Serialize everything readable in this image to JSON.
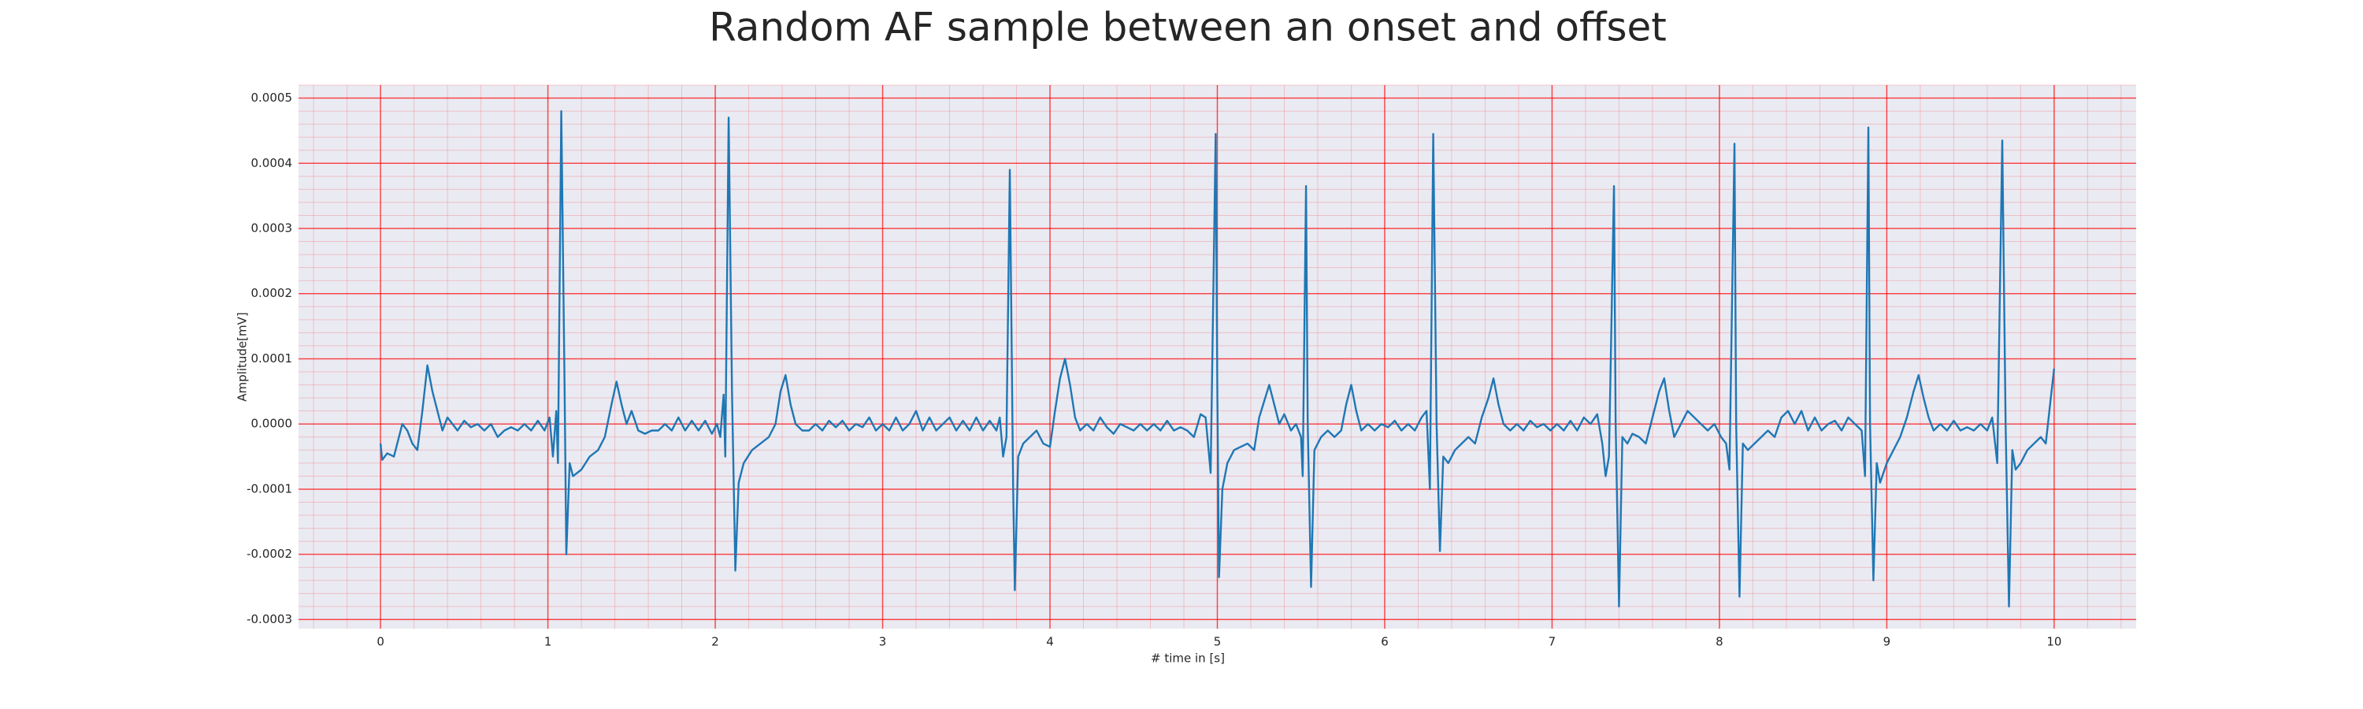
{
  "chart_data": {
    "type": "line",
    "title": "Random AF sample between an onset and offset",
    "xlabel": "# time in [s]",
    "ylabel": "Amplitude[mV]",
    "color": "#1f77b4",
    "grid": true,
    "grid_color": "#ff0000",
    "minor_grid": true,
    "xlim": [
      -0.49,
      10.49
    ],
    "ylim": [
      -0.000314,
      0.00052
    ],
    "xticks": [
      0,
      1,
      2,
      3,
      4,
      5,
      6,
      7,
      8,
      9,
      10
    ],
    "yticks": [
      -0.0003,
      -0.0002,
      -0.0001,
      {
        "value": 0,
        "label": "0.0000"
      },
      0.0001,
      0.0002,
      0.0003,
      0.0004,
      0.0005
    ],
    "x": [
      0.0,
      0.01,
      0.04,
      0.08,
      0.11,
      0.13,
      0.16,
      0.19,
      0.22,
      0.25,
      0.28,
      0.31,
      0.34,
      0.37,
      0.4,
      0.43,
      0.46,
      0.5,
      0.54,
      0.58,
      0.62,
      0.66,
      0.7,
      0.74,
      0.78,
      0.82,
      0.86,
      0.9,
      0.94,
      0.98,
      1.01,
      1.03,
      1.05,
      1.06,
      1.08,
      1.1,
      1.11,
      1.13,
      1.15,
      1.2,
      1.25,
      1.3,
      1.34,
      1.38,
      1.41,
      1.44,
      1.47,
      1.5,
      1.54,
      1.58,
      1.62,
      1.66,
      1.7,
      1.74,
      1.78,
      1.82,
      1.86,
      1.9,
      1.94,
      1.98,
      2.01,
      2.03,
      2.05,
      2.06,
      2.08,
      2.1,
      2.12,
      2.14,
      2.17,
      2.22,
      2.27,
      2.32,
      2.36,
      2.39,
      2.42,
      2.45,
      2.48,
      2.52,
      2.56,
      2.6,
      2.64,
      2.68,
      2.72,
      2.76,
      2.8,
      2.84,
      2.88,
      2.92,
      2.96,
      3.0,
      3.04,
      3.08,
      3.12,
      3.16,
      3.2,
      3.24,
      3.28,
      3.32,
      3.36,
      3.4,
      3.44,
      3.48,
      3.52,
      3.56,
      3.6,
      3.64,
      3.68,
      3.7,
      3.72,
      3.74,
      3.76,
      3.78,
      3.79,
      3.81,
      3.84,
      3.88,
      3.92,
      3.96,
      4.0,
      4.03,
      4.06,
      4.09,
      4.12,
      4.15,
      4.18,
      4.22,
      4.26,
      4.3,
      4.34,
      4.38,
      4.42,
      4.46,
      4.5,
      4.54,
      4.58,
      4.62,
      4.66,
      4.7,
      4.74,
      4.78,
      4.82,
      4.86,
      4.9,
      4.93,
      4.96,
      4.99,
      5.0,
      5.01,
      5.03,
      5.06,
      5.1,
      5.14,
      5.18,
      5.22,
      5.25,
      5.28,
      5.31,
      5.34,
      5.37,
      5.4,
      5.44,
      5.47,
      5.5,
      5.51,
      5.53,
      5.54,
      5.56,
      5.58,
      5.62,
      5.66,
      5.7,
      5.74,
      5.77,
      5.8,
      5.83,
      5.86,
      5.9,
      5.94,
      5.98,
      6.02,
      6.06,
      6.1,
      6.14,
      6.18,
      6.22,
      6.25,
      6.27,
      6.29,
      6.31,
      6.33,
      6.35,
      6.38,
      6.42,
      6.46,
      6.5,
      6.54,
      6.58,
      6.62,
      6.65,
      6.68,
      6.71,
      6.75,
      6.79,
      6.83,
      6.87,
      6.91,
      6.95,
      6.99,
      7.03,
      7.07,
      7.11,
      7.15,
      7.19,
      7.23,
      7.27,
      7.3,
      7.32,
      7.34,
      7.37,
      7.38,
      7.4,
      7.42,
      7.45,
      7.48,
      7.52,
      7.56,
      7.6,
      7.64,
      7.67,
      7.7,
      7.73,
      7.77,
      7.81,
      7.85,
      7.89,
      7.93,
      7.97,
      8.01,
      8.04,
      8.06,
      8.09,
      8.1,
      8.12,
      8.14,
      8.17,
      8.21,
      8.25,
      8.29,
      8.33,
      8.37,
      8.41,
      8.45,
      8.49,
      8.53,
      8.57,
      8.61,
      8.65,
      8.69,
      8.73,
      8.77,
      8.81,
      8.85,
      8.87,
      8.89,
      8.9,
      8.92,
      8.94,
      8.96,
      9.0,
      9.04,
      9.08,
      9.12,
      9.16,
      9.19,
      9.22,
      9.25,
      9.28,
      9.32,
      9.36,
      9.4,
      9.44,
      9.48,
      9.52,
      9.56,
      9.6,
      9.63,
      9.66,
      9.69,
      9.71,
      9.73,
      9.75,
      9.77,
      9.8,
      9.84,
      9.88,
      9.92,
      9.95,
      9.98,
      10.0
    ],
    "values": [
      -3e-05,
      -5.5e-05,
      -4.5e-05,
      -5e-05,
      -2e-05,
      0,
      -1e-05,
      -3e-05,
      -4e-05,
      2e-05,
      9e-05,
      5e-05,
      2e-05,
      -1e-05,
      1e-05,
      0,
      -1e-05,
      5e-06,
      -5e-06,
      0,
      -1e-05,
      0,
      -2e-05,
      -1e-05,
      -5e-06,
      -1e-05,
      0,
      -1e-05,
      5e-06,
      -1e-05,
      1e-05,
      -5e-05,
      2e-05,
      -6e-05,
      0.00048,
      5e-05,
      -0.0002,
      -6e-05,
      -8e-05,
      -7e-05,
      -5e-05,
      -4e-05,
      -2e-05,
      3e-05,
      6.5e-05,
      3e-05,
      0,
      2e-05,
      -1e-05,
      -1.5e-05,
      -1e-05,
      -1e-05,
      0,
      -1e-05,
      1e-05,
      -1e-05,
      5e-06,
      -1e-05,
      5e-06,
      -1.5e-05,
      0,
      -2e-05,
      4.5e-05,
      -5e-05,
      0.00047,
      5e-05,
      -0.000225,
      -9e-05,
      -6e-05,
      -4e-05,
      -3e-05,
      -2e-05,
      0,
      5e-05,
      7.5e-05,
      3e-05,
      0,
      -1e-05,
      -1e-05,
      0,
      -1e-05,
      5e-06,
      -5e-06,
      5e-06,
      -1e-05,
      0,
      -5e-06,
      1e-05,
      -1e-05,
      0,
      -1e-05,
      1e-05,
      -1e-05,
      0,
      2e-05,
      -1e-05,
      1e-05,
      -1e-05,
      0,
      1e-05,
      -1e-05,
      5e-06,
      -1e-05,
      1e-05,
      -1e-05,
      5e-06,
      -1e-05,
      1e-05,
      -5e-05,
      -2e-05,
      0.00039,
      -0.0001,
      -0.000255,
      -5e-05,
      -3e-05,
      -2e-05,
      -1e-05,
      -3e-05,
      -3.5e-05,
      2e-05,
      7e-05,
      0.0001,
      6e-05,
      1e-05,
      -1e-05,
      0,
      -1e-05,
      1e-05,
      -5e-06,
      -1.5e-05,
      0,
      -5e-06,
      -1e-05,
      0,
      -1e-05,
      0,
      -1e-05,
      5e-06,
      -1e-05,
      -5e-06,
      -1e-05,
      -2e-05,
      1.5e-05,
      1e-05,
      -7.5e-05,
      0.000445,
      5e-05,
      -0.000235,
      -0.0001,
      -6e-05,
      -4e-05,
      -3.5e-05,
      -3e-05,
      -4e-05,
      1e-05,
      3.5e-05,
      6e-05,
      3e-05,
      0,
      1.5e-05,
      -1e-05,
      0,
      -2e-05,
      -8e-05,
      0.000365,
      0,
      -0.00025,
      -4e-05,
      -2e-05,
      -1e-05,
      -2e-05,
      -1e-05,
      3e-05,
      6e-05,
      2e-05,
      -1e-05,
      0,
      -1e-05,
      0,
      -5e-06,
      5e-06,
      -1e-05,
      0,
      -1e-05,
      1e-05,
      2e-05,
      -0.0001,
      0.000445,
      0,
      -0.000195,
      -5e-05,
      -6e-05,
      -4e-05,
      -3e-05,
      -2e-05,
      -3e-05,
      1e-05,
      4e-05,
      7e-05,
      3e-05,
      0,
      -1e-05,
      0,
      -1e-05,
      5e-06,
      -5e-06,
      0,
      -1e-05,
      0,
      -1e-05,
      5e-06,
      -1e-05,
      1e-05,
      0,
      1.5e-05,
      -3e-05,
      -8e-05,
      -5e-05,
      0.000365,
      0,
      -0.00028,
      -2e-05,
      -3e-05,
      -1.5e-05,
      -2e-05,
      -3e-05,
      1e-05,
      5e-05,
      7e-05,
      2e-05,
      -2e-05,
      0,
      2e-05,
      1e-05,
      0,
      -1e-05,
      0,
      -2e-05,
      -3e-05,
      -7e-05,
      0.00043,
      0,
      -0.000265,
      -3e-05,
      -4e-05,
      -3e-05,
      -2e-05,
      -1e-05,
      -2e-05,
      1e-05,
      2e-05,
      0,
      2e-05,
      -1e-05,
      1e-05,
      -1e-05,
      0,
      5e-06,
      -1e-05,
      1e-05,
      0,
      -1e-05,
      -8e-05,
      0.000455,
      0,
      -0.00024,
      -6e-05,
      -9e-05,
      -6e-05,
      -4e-05,
      -2e-05,
      1e-05,
      5e-05,
      7.5e-05,
      4e-05,
      1e-05,
      -1e-05,
      0,
      -1e-05,
      5e-06,
      -1e-05,
      -5e-06,
      -1e-05,
      0,
      -1e-05,
      1e-05,
      -6e-05,
      0.000435,
      0,
      -0.00028,
      -4e-05,
      -7e-05,
      -6e-05,
      -4e-05,
      -3e-05,
      -2e-05,
      -3e-05,
      4e-05,
      8.5e-05
    ]
  }
}
